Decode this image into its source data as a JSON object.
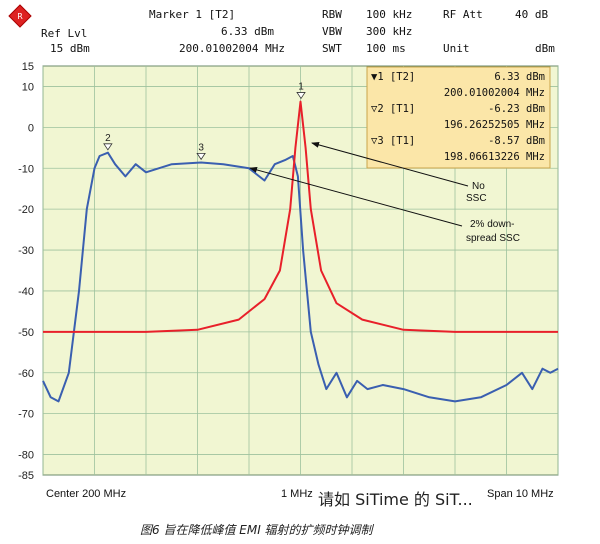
{
  "header": {
    "ref_lvl_label": "Ref Lvl",
    "ref_lvl_value": "15 dBm",
    "marker_label": "Marker 1 [T2]",
    "marker_level": "6.33 dBm",
    "marker_freq": "200.01002004 MHz",
    "rbw_label": "RBW",
    "rbw_value": "100 kHz",
    "vbw_label": "VBW",
    "vbw_value": "300 kHz",
    "swt_label": "SWT",
    "swt_value": "100 ms",
    "rf_att_label": "RF Att",
    "rf_att_value": "40 dB",
    "unit_label": "Unit",
    "unit_value": "dBm"
  },
  "markers_box": [
    {
      "label": "▼1 [T2]",
      "level": "6.33 dBm",
      "freq": "200.01002004 MHz"
    },
    {
      "label": "▽2 [T1]",
      "level": "-6.23 dBm",
      "freq": "196.26252505 MHz"
    },
    {
      "label": "▽3 [T1]",
      "level": "-8.57 dBm",
      "freq": "198.06613226 MHz"
    }
  ],
  "annotations": {
    "no_ssc": [
      "No",
      "SSC"
    ],
    "ssc": [
      "2% down-",
      "spread SSC"
    ]
  },
  "x_labels": {
    "left": "Center 200 MHz",
    "center": "1 MHz",
    "right": "Span 10 MHz"
  },
  "caption": "图6  旨在降低峰值 EMI 辐射的扩频时钟调制",
  "watermark": "请如 SiTime 的 SiT...",
  "colors": {
    "background": "#f1f6d2",
    "grid": "#9ec29e",
    "no_ssc": "#e8202a",
    "ssc": "#3a5fb0",
    "marker_box": "#fbe6a8"
  },
  "chart_data": {
    "type": "line",
    "xlabel": "",
    "ylabel": "",
    "xlim": [
      195,
      205
    ],
    "ylim": [
      -85,
      15
    ],
    "yticks": [
      15,
      10,
      0,
      -10,
      -20,
      -30,
      -40,
      -50,
      -60,
      -70,
      -80,
      -85
    ],
    "grid": true,
    "series": [
      {
        "name": "No SSC",
        "x": [
          195,
          196,
          197,
          198,
          198.8,
          199.3,
          199.6,
          199.8,
          199.9,
          200.0,
          200.1,
          200.2,
          200.4,
          200.7,
          201.2,
          202,
          203,
          204,
          205
        ],
        "y": [
          -50,
          -50,
          -50,
          -49.5,
          -47,
          -42,
          -35,
          -20,
          -5,
          6.3,
          -5,
          -20,
          -35,
          -43,
          -47,
          -49.5,
          -50,
          -50,
          -50
        ]
      },
      {
        "name": "2% down-spread SSC",
        "x": [
          195,
          195.15,
          195.3,
          195.5,
          195.7,
          195.85,
          196.0,
          196.1,
          196.26,
          196.4,
          196.6,
          196.8,
          197.0,
          197.5,
          198.07,
          198.5,
          199.0,
          199.3,
          199.5,
          199.7,
          199.85,
          199.95,
          200.05,
          200.2,
          200.35,
          200.5,
          200.7,
          200.9,
          201.1,
          201.3,
          201.6,
          202,
          202.5,
          203,
          203.5,
          204,
          204.3,
          204.5,
          204.7,
          204.85,
          205
        ],
        "y": [
          -62,
          -66,
          -67,
          -60,
          -40,
          -20,
          -10,
          -7,
          -6.2,
          -9,
          -12,
          -9,
          -11,
          -9,
          -8.6,
          -9,
          -10,
          -13,
          -9,
          -8,
          -7,
          -12,
          -30,
          -50,
          -58,
          -64,
          -60,
          -66,
          -62,
          -64,
          -63,
          -64,
          -66,
          -67,
          -66,
          -63,
          -60,
          -64,
          -59,
          -60,
          -59
        ]
      }
    ],
    "markers": [
      {
        "label": "1",
        "x": 200.01,
        "y": 6.33
      },
      {
        "label": "2",
        "x": 196.26,
        "y": -6.23
      },
      {
        "label": "3",
        "x": 198.07,
        "y": -8.57
      }
    ]
  }
}
